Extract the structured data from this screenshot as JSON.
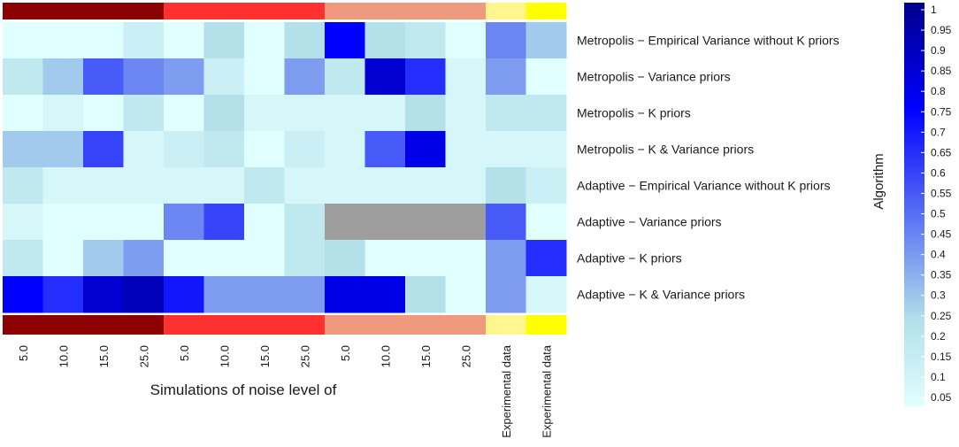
{
  "chart_data": {
    "type": "heatmap",
    "title": "",
    "xlabel": "Simulations of noise level of",
    "ylabel": "Algorithm",
    "columns": [
      "5.0",
      "10.0",
      "15.0",
      "25.0",
      "5.0",
      "10.0",
      "15.0",
      "25.0",
      "5.0",
      "10.0",
      "15.0",
      "25.0",
      "Experimental data",
      "Experimental data"
    ],
    "column_groups": [
      "dark-red",
      "dark-red",
      "dark-red",
      "dark-red",
      "red",
      "red",
      "red",
      "red",
      "salmon",
      "salmon",
      "salmon",
      "salmon",
      "light-yellow",
      "yellow"
    ],
    "group_colors": {
      "dark-red": "#8b0000",
      "red": "#ff3030",
      "salmon": "#ef9a7f",
      "light-yellow": "#fff68f",
      "yellow": "#ffff00"
    },
    "rows": [
      "Metropolis − Empirical Variance without K priors",
      "Metropolis − Variance priors",
      "Metropolis − K priors",
      "Metropolis − K & Variance priors",
      "Adaptive − Empirical Variance without K priors",
      "Adaptive − Variance priors",
      "Adaptive − K priors",
      "Adaptive − K & Variance priors"
    ],
    "values": [
      [
        0.05,
        0.05,
        0.05,
        0.15,
        0.05,
        0.25,
        0.05,
        0.25,
        0.75,
        0.25,
        0.2,
        0.05,
        0.45,
        0.3
      ],
      [
        0.2,
        0.3,
        0.55,
        0.45,
        0.4,
        0.15,
        0.05,
        0.4,
        0.2,
        0.85,
        0.65,
        0.1,
        0.4,
        0.05
      ],
      [
        0.05,
        0.1,
        0.05,
        0.2,
        0.05,
        0.25,
        0.1,
        0.1,
        0.1,
        0.1,
        0.25,
        0.1,
        0.2,
        0.2
      ],
      [
        0.3,
        0.3,
        0.6,
        0.1,
        0.15,
        0.2,
        0.05,
        0.15,
        0.1,
        0.55,
        0.8,
        0.1,
        0.1,
        0.1
      ],
      [
        0.2,
        0.1,
        0.1,
        0.1,
        0.1,
        0.1,
        0.2,
        0.1,
        0.1,
        0.1,
        0.1,
        0.1,
        0.25,
        0.15
      ],
      [
        0.1,
        0.05,
        0.05,
        0.05,
        0.45,
        0.6,
        0.05,
        0.2,
        null,
        null,
        null,
        null,
        0.55,
        0.05
      ],
      [
        0.2,
        0.05,
        0.3,
        0.4,
        0.05,
        0.05,
        0.05,
        0.2,
        0.25,
        0.05,
        0.05,
        0.05,
        0.4,
        0.65
      ],
      [
        0.75,
        0.65,
        0.85,
        0.9,
        0.7,
        0.4,
        0.4,
        0.4,
        0.8,
        0.8,
        0.25,
        0.05,
        0.4,
        0.1
      ]
    ],
    "missing_color": "#9e9e9e",
    "color_scale": {
      "min": 0.05,
      "max": 1,
      "stops": [
        "#e0ffff",
        "#b4e0ea",
        "#0000ff",
        "#00008b"
      ],
      "stop_values": [
        0.05,
        0.25,
        0.75,
        1
      ]
    },
    "legend_ticks": [
      "1",
      "0.95",
      "0.9",
      "0.85",
      "0.8",
      "0.75",
      "0.7",
      "0.65",
      "0.6",
      "0.55",
      "0.5",
      "0.45",
      "0.4",
      "0.35",
      "0.3",
      "0.25",
      "0.2",
      "0.15",
      "0.1",
      "0.05"
    ],
    "legend_position": "right"
  }
}
